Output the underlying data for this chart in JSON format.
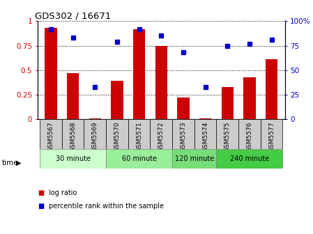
{
  "title": "GDS302 / 16671",
  "samples": [
    "GSM5567",
    "GSM5568",
    "GSM5569",
    "GSM5570",
    "GSM5571",
    "GSM5572",
    "GSM5573",
    "GSM5574",
    "GSM5575",
    "GSM5576",
    "GSM5577"
  ],
  "log_ratio": [
    0.93,
    0.47,
    0.01,
    0.39,
    0.92,
    0.75,
    0.22,
    0.01,
    0.33,
    0.43,
    0.61
  ],
  "percentile": [
    92,
    83,
    33,
    79,
    92,
    85,
    68,
    33,
    75,
    77,
    81
  ],
  "bar_color": "#cc0000",
  "dot_color": "#0000cc",
  "ylim_left": [
    0,
    1.0
  ],
  "ylim_right": [
    0,
    100
  ],
  "yticks_left": [
    0,
    0.25,
    0.5,
    0.75,
    1.0
  ],
  "ytick_labels_left": [
    "0",
    "0.25",
    "0.5",
    "0.75",
    "1"
  ],
  "yticks_right": [
    0,
    25,
    50,
    75,
    100
  ],
  "ytick_labels_right": [
    "0",
    "25",
    "50",
    "75",
    "100%"
  ],
  "groups": [
    {
      "label": "30 minute",
      "indices": [
        0,
        1,
        2
      ],
      "color": "#ccffcc"
    },
    {
      "label": "60 minute",
      "indices": [
        3,
        4,
        5
      ],
      "color": "#99ee99"
    },
    {
      "label": "120 minute",
      "indices": [
        6,
        7
      ],
      "color": "#77dd77"
    },
    {
      "label": "240 minute",
      "indices": [
        8,
        9,
        10
      ],
      "color": "#44cc44"
    }
  ],
  "time_label": "time",
  "legend_log": "log ratio",
  "legend_pct": "percentile rank within the sample",
  "background_color": "#ffffff",
  "sample_bg_color": "#cccccc"
}
